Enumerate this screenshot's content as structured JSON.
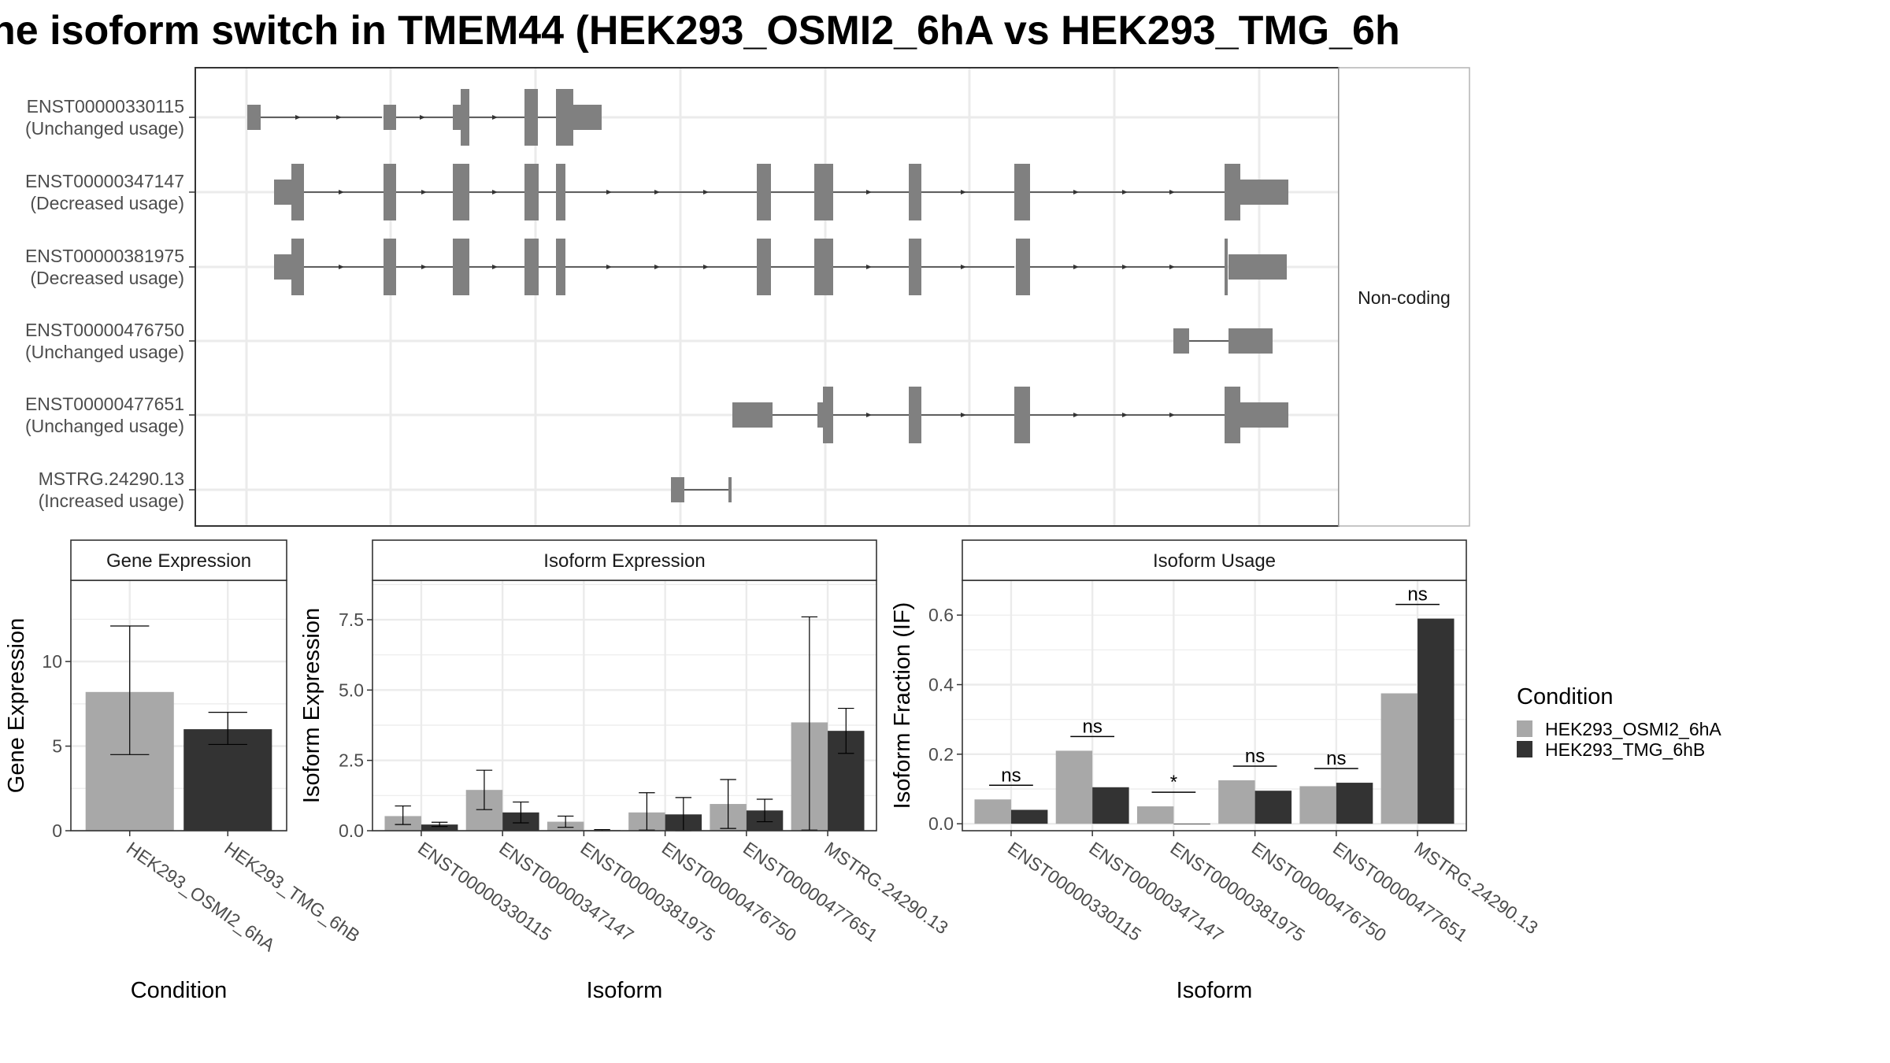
{
  "title": "ne isoform switch in TMEM44 (HEK293_OSMI2_6hA vs HEK293_TMG_6h",
  "colors": {
    "cond1": "#a8a8a8",
    "cond2": "#333333",
    "exon": "#808080",
    "panel_border": "#333333",
    "strip_border": "#b3b3b3",
    "grid": "#ebebeb",
    "text": "#4d4d4d"
  },
  "transcripts": {
    "strip_label": "Non-coding",
    "rows": [
      {
        "id": "ENST00000330115",
        "usage": "(Unchanged usage)"
      },
      {
        "id": "ENST00000347147",
        "usage": "(Decreased usage)"
      },
      {
        "id": "ENST00000381975",
        "usage": "(Decreased usage)"
      },
      {
        "id": "ENST00000476750",
        "usage": "(Unchanged usage)"
      },
      {
        "id": "ENST00000477651",
        "usage": "(Unchanged usage)"
      },
      {
        "id": "MSTRG.24290.13",
        "usage": "(Increased usage)"
      }
    ]
  },
  "legend": {
    "title": "Condition",
    "items": [
      "HEK293_OSMI2_6hA",
      "HEK293_TMG_6hB"
    ]
  },
  "chart_data": [
    {
      "type": "bar",
      "title": "Gene Expression",
      "xlabel": "Condition",
      "ylabel": "Gene Expression",
      "ylim": [
        0,
        14.8
      ],
      "yticks": [
        0,
        5,
        10
      ],
      "categories": [
        "HEK293_OSMI2_6hA",
        "HEK293_TMG_6hB"
      ],
      "values": [
        8.2,
        6.0
      ],
      "errors": [
        [
          4.5,
          12.1
        ],
        [
          5.1,
          7.0
        ]
      ]
    },
    {
      "type": "bar",
      "title": "Isoform Expression",
      "xlabel": "Isoform",
      "ylabel": "Isoform Expression",
      "ylim": [
        0,
        8.9
      ],
      "yticks": [
        "0.0",
        "2.5",
        "5.0",
        "7.5"
      ],
      "categories": [
        "ENST00000330115",
        "ENST00000347147",
        "ENST00000381975",
        "ENST00000476750",
        "ENST00000477651",
        "MSTRG.24290.13"
      ],
      "series": [
        {
          "name": "HEK293_OSMI2_6hA",
          "values": [
            0.52,
            1.45,
            0.32,
            0.65,
            0.95,
            3.85
          ],
          "errors": [
            [
              0.22,
              0.88
            ],
            [
              0.75,
              2.15
            ],
            [
              0.12,
              0.52
            ],
            [
              0.02,
              1.35
            ],
            [
              0.08,
              1.82
            ],
            [
              0.02,
              7.6
            ]
          ]
        },
        {
          "name": "HEK293_TMG_6hB",
          "values": [
            0.22,
            0.65,
            0.02,
            0.58,
            0.72,
            3.55
          ],
          "errors": [
            [
              0.15,
              0.3
            ],
            [
              0.28,
              1.02
            ],
            [
              0.0,
              0.04
            ],
            [
              0.0,
              1.18
            ],
            [
              0.32,
              1.12
            ],
            [
              2.75,
              4.35
            ]
          ]
        }
      ]
    },
    {
      "type": "bar",
      "title": "Isoform Usage",
      "xlabel": "Isoform",
      "ylabel": "Isoform Fraction (IF)",
      "ylim": [
        -0.02,
        0.7
      ],
      "yticks": [
        "0.0",
        "0.2",
        "0.4",
        "0.6"
      ],
      "categories": [
        "ENST00000330115",
        "ENST00000347147",
        "ENST00000381975",
        "ENST00000476750",
        "ENST00000477651",
        "MSTRG.24290.13"
      ],
      "series": [
        {
          "name": "HEK293_OSMI2_6hA",
          "values": [
            0.07,
            0.21,
            0.05,
            0.125,
            0.108,
            0.375
          ]
        },
        {
          "name": "HEK293_TMG_6hB",
          "values": [
            0.04,
            0.105,
            0.0,
            0.095,
            0.118,
            0.59
          ]
        }
      ],
      "significance": [
        "ns",
        "ns",
        "*",
        "ns",
        "ns",
        "ns"
      ]
    }
  ]
}
